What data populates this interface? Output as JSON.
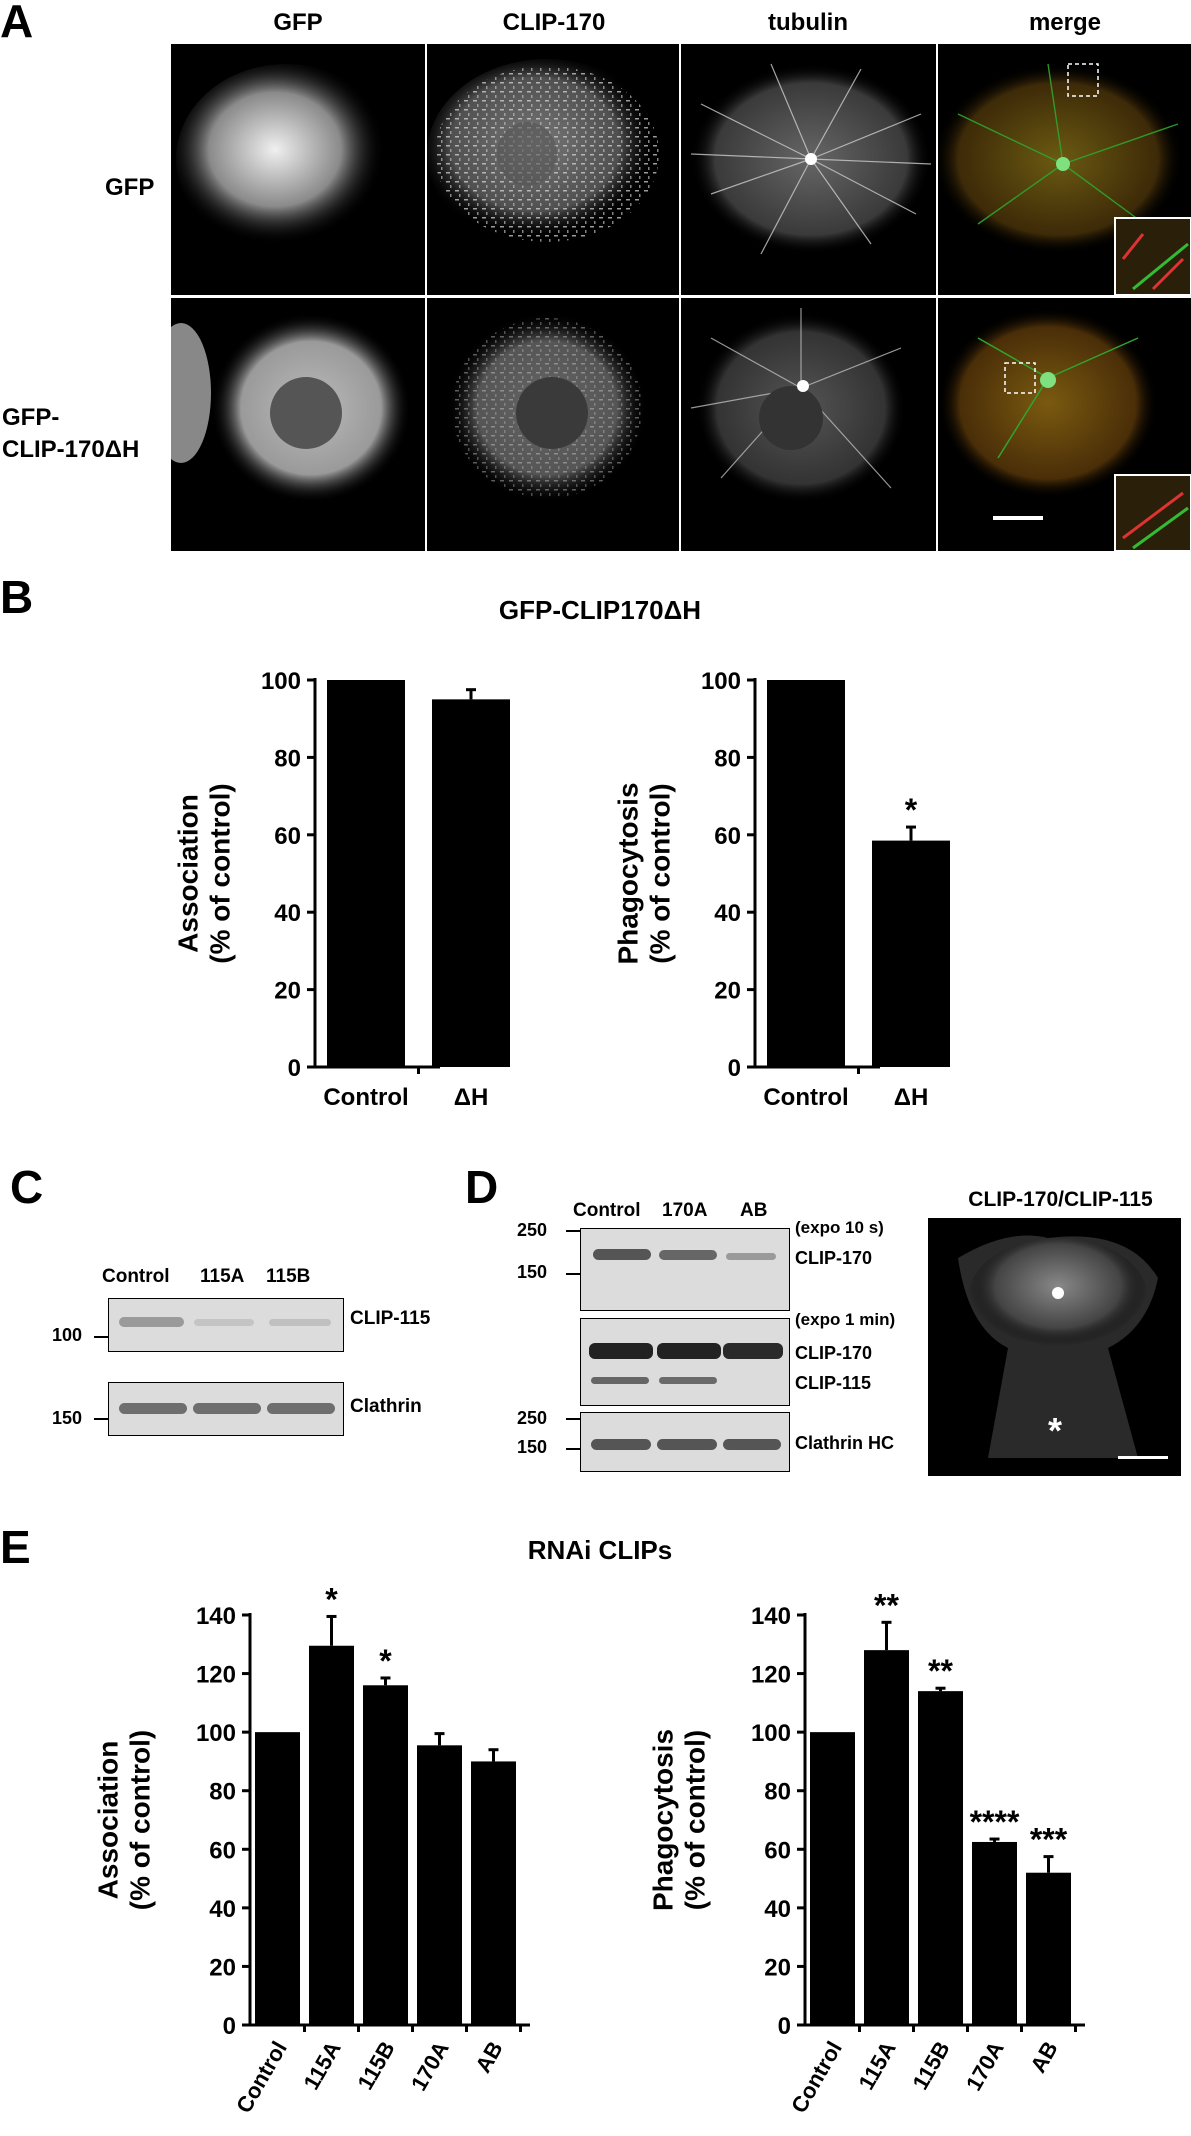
{
  "panel_a": {
    "letter": "A",
    "columns": [
      "GFP",
      "CLIP-170",
      "tubulin",
      "merge"
    ],
    "rows": [
      {
        "label_lines": [
          "GFP"
        ]
      },
      {
        "label_lines": [
          "GFP-",
          "CLIP-170ΔH"
        ]
      }
    ]
  },
  "panel_b": {
    "letter": "B",
    "title": "GFP-CLIP170ΔH"
  },
  "panel_c": {
    "letter": "C",
    "lanes": [
      "Control",
      "115A",
      "115B"
    ],
    "blots": [
      {
        "label": "CLIP-115",
        "marker": "100"
      },
      {
        "label": "Clathrin",
        "marker": "150"
      }
    ]
  },
  "panel_d": {
    "letter": "D",
    "lanes": [
      "Control",
      "170A",
      "AB"
    ],
    "blot1": {
      "markers": [
        "250",
        "150"
      ],
      "labels": [
        "(expo 10 s)",
        "CLIP-170"
      ]
    },
    "blot2": {
      "labels": [
        "(expo 1 min)",
        "CLIP-170",
        "CLIP-115"
      ]
    },
    "blot3": {
      "markers": [
        "250",
        "150"
      ],
      "labels": [
        "Clathrin HC"
      ]
    },
    "image_title": "CLIP-170/CLIP-115",
    "asterisk": "*"
  },
  "panel_e": {
    "letter": "E",
    "title": "RNAi CLIPs"
  },
  "chart_data": [
    {
      "type": "bar",
      "panel": "B",
      "categories": [
        "Control",
        "ΔH"
      ],
      "values": [
        100,
        95
      ],
      "errors": [
        0,
        2.5
      ],
      "significance": [
        "",
        ""
      ],
      "ylabel_lines": [
        "Association",
        "(% of control)"
      ],
      "ylim": [
        0,
        100
      ],
      "yticks": [
        0,
        20,
        40,
        60,
        80,
        100
      ],
      "xlabels_rotated": false
    },
    {
      "type": "bar",
      "panel": "B",
      "categories": [
        "Control",
        "ΔH"
      ],
      "values": [
        100,
        58.5
      ],
      "errors": [
        0,
        3.5
      ],
      "significance": [
        "",
        "*"
      ],
      "ylabel_lines": [
        "Phagocytosis",
        "(% of control)"
      ],
      "ylim": [
        0,
        100
      ],
      "yticks": [
        0,
        20,
        40,
        60,
        80,
        100
      ],
      "xlabels_rotated": false
    },
    {
      "type": "bar",
      "panel": "E",
      "categories": [
        "Control",
        "115A",
        "115B",
        "170A",
        "AB"
      ],
      "values": [
        100,
        129.5,
        116,
        95.5,
        90
      ],
      "errors": [
        0,
        10,
        2.5,
        4,
        4
      ],
      "significance": [
        "",
        "*",
        "*",
        "",
        ""
      ],
      "ylabel_lines": [
        "Association",
        "(% of control)"
      ],
      "ylim": [
        0,
        140
      ],
      "yticks": [
        0,
        20,
        40,
        60,
        80,
        100,
        120,
        140
      ],
      "xlabels_rotated": true
    },
    {
      "type": "bar",
      "panel": "E",
      "categories": [
        "Control",
        "115A",
        "115B",
        "170A",
        "AB"
      ],
      "values": [
        100,
        128,
        114,
        62.5,
        52
      ],
      "errors": [
        0,
        9.5,
        1,
        1,
        5.5
      ],
      "significance": [
        "",
        "**",
        "**",
        "****",
        "***"
      ],
      "ylabel_lines": [
        "Phagocytosis",
        "(% of control)"
      ],
      "ylim": [
        0,
        140
      ],
      "yticks": [
        0,
        20,
        40,
        60,
        80,
        100,
        120,
        140
      ],
      "xlabels_rotated": true
    }
  ]
}
